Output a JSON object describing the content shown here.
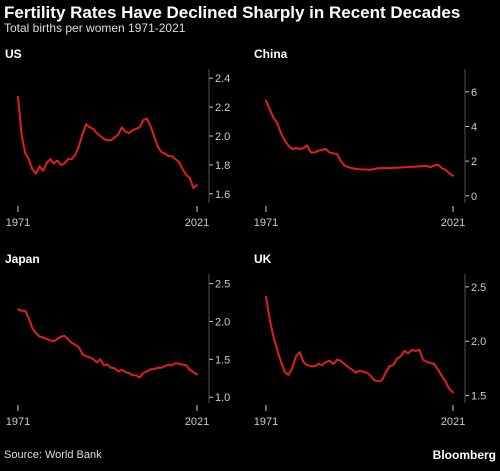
{
  "header": {
    "title": "Fertility Rates Have Declined Sharply in Recent Decades",
    "subtitle": "Total births per women 1971-2021"
  },
  "footer": {
    "source": "Source: World Bank",
    "brand": "Bloomberg"
  },
  "colors": {
    "background": "#000000",
    "line": "#e0201c",
    "axis": "#cccccc"
  },
  "chart_data": [
    {
      "type": "line",
      "title": "US",
      "x_tick_labels": [
        "1971",
        "2021"
      ],
      "y_ticks": [
        "1.6",
        "1.8",
        "2.0",
        "2.2",
        "2.4"
      ],
      "ylim": [
        1.55,
        2.45
      ],
      "x": [
        1971,
        1972,
        1973,
        1974,
        1975,
        1976,
        1977,
        1978,
        1979,
        1980,
        1981,
        1982,
        1983,
        1984,
        1985,
        1986,
        1987,
        1988,
        1989,
        1990,
        1991,
        1992,
        1993,
        1994,
        1995,
        1996,
        1997,
        1998,
        1999,
        2000,
        2001,
        2002,
        2003,
        2004,
        2005,
        2006,
        2007,
        2008,
        2009,
        2010,
        2011,
        2012,
        2013,
        2014,
        2015,
        2016,
        2017,
        2018,
        2019,
        2020,
        2021
      ],
      "values": [
        2.27,
        2.01,
        1.88,
        1.84,
        1.77,
        1.74,
        1.79,
        1.76,
        1.81,
        1.84,
        1.81,
        1.83,
        1.8,
        1.81,
        1.84,
        1.84,
        1.87,
        1.93,
        2.01,
        2.08,
        2.06,
        2.05,
        2.02,
        2.0,
        1.98,
        1.97,
        1.97,
        1.99,
        2.01,
        2.06,
        2.03,
        2.02,
        2.04,
        2.05,
        2.06,
        2.11,
        2.12,
        2.07,
        2.0,
        1.93,
        1.89,
        1.88,
        1.86,
        1.86,
        1.84,
        1.82,
        1.77,
        1.73,
        1.71,
        1.64,
        1.66
      ]
    },
    {
      "type": "line",
      "title": "China",
      "x_tick_labels": [
        "1971",
        "2021"
      ],
      "y_ticks": [
        "0",
        "2",
        "4",
        "6"
      ],
      "ylim": [
        -0.3,
        7.2
      ],
      "x": [
        1971,
        1972,
        1973,
        1974,
        1975,
        1976,
        1977,
        1978,
        1979,
        1980,
        1981,
        1982,
        1983,
        1984,
        1985,
        1986,
        1987,
        1988,
        1989,
        1990,
        1991,
        1992,
        1993,
        1994,
        1995,
        1996,
        1997,
        1998,
        1999,
        2000,
        2001,
        2002,
        2003,
        2004,
        2005,
        2006,
        2007,
        2008,
        2009,
        2010,
        2011,
        2012,
        2013,
        2014,
        2015,
        2016,
        2017,
        2018,
        2019,
        2020,
        2021
      ],
      "values": [
        5.5,
        5.0,
        4.5,
        4.2,
        3.6,
        3.2,
        2.9,
        2.7,
        2.75,
        2.7,
        2.75,
        2.9,
        2.5,
        2.5,
        2.6,
        2.65,
        2.7,
        2.5,
        2.45,
        2.4,
        2.0,
        1.75,
        1.65,
        1.6,
        1.55,
        1.53,
        1.52,
        1.52,
        1.5,
        1.55,
        1.6,
        1.6,
        1.6,
        1.6,
        1.61,
        1.62,
        1.63,
        1.65,
        1.66,
        1.68,
        1.68,
        1.7,
        1.7,
        1.72,
        1.65,
        1.75,
        1.8,
        1.6,
        1.5,
        1.3,
        1.16
      ]
    },
    {
      "type": "line",
      "title": "Japan",
      "x_tick_labels": [
        "1971",
        "2021"
      ],
      "y_ticks": [
        "1.0",
        "1.5",
        "2.0",
        "2.5"
      ],
      "ylim": [
        0.95,
        2.6
      ],
      "x": [
        1971,
        1972,
        1973,
        1974,
        1975,
        1976,
        1977,
        1978,
        1979,
        1980,
        1981,
        1982,
        1983,
        1984,
        1985,
        1986,
        1987,
        1988,
        1989,
        1990,
        1991,
        1992,
        1993,
        1994,
        1995,
        1996,
        1997,
        1998,
        1999,
        2000,
        2001,
        2002,
        2003,
        2004,
        2005,
        2006,
        2007,
        2008,
        2009,
        2010,
        2011,
        2012,
        2013,
        2014,
        2015,
        2016,
        2017,
        2018,
        2019,
        2020,
        2021
      ],
      "values": [
        2.16,
        2.14,
        2.14,
        2.05,
        1.91,
        1.85,
        1.8,
        1.79,
        1.77,
        1.75,
        1.74,
        1.77,
        1.8,
        1.81,
        1.76,
        1.72,
        1.69,
        1.66,
        1.57,
        1.54,
        1.53,
        1.5,
        1.46,
        1.5,
        1.42,
        1.43,
        1.39,
        1.38,
        1.34,
        1.36,
        1.33,
        1.32,
        1.29,
        1.29,
        1.26,
        1.32,
        1.34,
        1.37,
        1.37,
        1.39,
        1.39,
        1.41,
        1.43,
        1.42,
        1.45,
        1.44,
        1.43,
        1.42,
        1.36,
        1.33,
        1.3
      ]
    },
    {
      "type": "line",
      "title": "UK",
      "x_tick_labels": [
        "1971",
        "2021"
      ],
      "y_ticks": [
        "1.5",
        "2.0",
        "2.5"
      ],
      "ylim": [
        1.45,
        2.6
      ],
      "x": [
        1971,
        1972,
        1973,
        1974,
        1975,
        1976,
        1977,
        1978,
        1979,
        1980,
        1981,
        1982,
        1983,
        1984,
        1985,
        1986,
        1987,
        1988,
        1989,
        1990,
        1991,
        1992,
        1993,
        1994,
        1995,
        1996,
        1997,
        1998,
        1999,
        2000,
        2001,
        2002,
        2003,
        2004,
        2005,
        2006,
        2007,
        2008,
        2009,
        2010,
        2011,
        2012,
        2013,
        2014,
        2015,
        2016,
        2017,
        2018,
        2019,
        2020,
        2021
      ],
      "values": [
        2.41,
        2.2,
        2.04,
        1.92,
        1.81,
        1.72,
        1.69,
        1.75,
        1.86,
        1.9,
        1.81,
        1.78,
        1.77,
        1.77,
        1.79,
        1.78,
        1.81,
        1.82,
        1.79,
        1.83,
        1.82,
        1.79,
        1.76,
        1.74,
        1.71,
        1.73,
        1.72,
        1.71,
        1.68,
        1.64,
        1.63,
        1.64,
        1.71,
        1.77,
        1.78,
        1.84,
        1.86,
        1.91,
        1.89,
        1.92,
        1.91,
        1.92,
        1.83,
        1.81,
        1.8,
        1.79,
        1.74,
        1.68,
        1.63,
        1.56,
        1.53
      ]
    }
  ]
}
